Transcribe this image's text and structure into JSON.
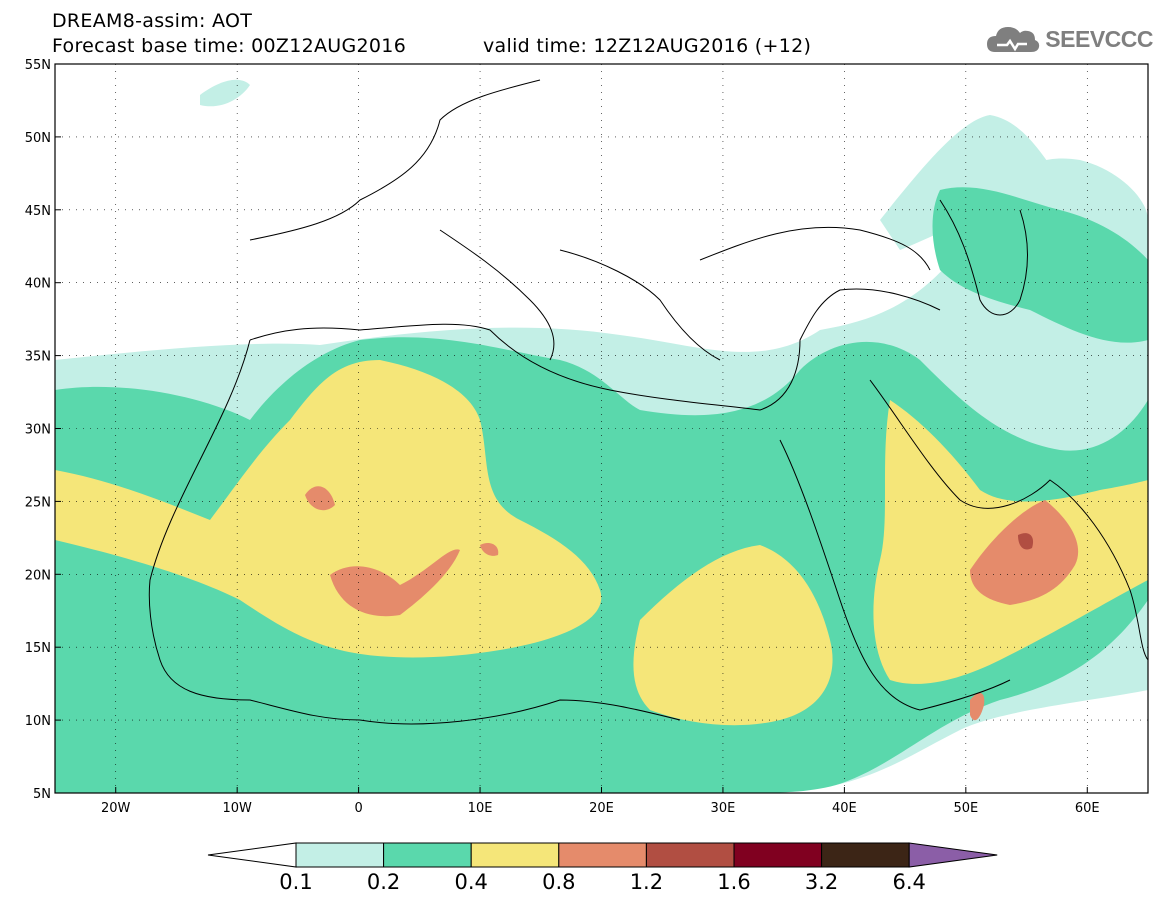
{
  "header": {
    "line1": "DREAM8-assim: AOT",
    "line2": "Forecast base time: 00Z12AUG2016",
    "line2b": "valid time: 12Z12AUG2016 (+12)"
  },
  "logo": {
    "text": "SEEVCCC",
    "icon": "cloud-icon",
    "color": "#7f7f7f"
  },
  "map": {
    "lon_range": [
      -25,
      65
    ],
    "lat_range": [
      5,
      55
    ],
    "x_ticks": [
      "20W",
      "10W",
      "0",
      "10E",
      "20E",
      "30E",
      "40E",
      "50E",
      "60E"
    ],
    "x_tick_values": [
      -20,
      -10,
      0,
      10,
      20,
      30,
      40,
      50,
      60
    ],
    "y_ticks": [
      "55N",
      "50N",
      "45N",
      "40N",
      "35N",
      "30N",
      "25N",
      "20N",
      "15N",
      "10N",
      "5N"
    ],
    "y_tick_values": [
      55,
      50,
      45,
      40,
      35,
      30,
      25,
      20,
      15,
      10,
      5
    ]
  },
  "colorbar": {
    "labels": [
      "0.1",
      "0.2",
      "0.4",
      "0.8",
      "1.2",
      "1.6",
      "3.2",
      "6.4"
    ],
    "colors": [
      "#ffffff",
      "#c3efe6",
      "#5ad8ac",
      "#f5e679",
      "#e58b6b",
      "#b14e42",
      "#800020",
      "#3c2516",
      "#8b5ea7"
    ]
  },
  "chart_data": {
    "type": "heatmap",
    "title": "DREAM8-assim: AOT",
    "levels": [
      0.1,
      0.2,
      0.4,
      0.8,
      1.2,
      1.6,
      3.2,
      6.4
    ],
    "xlim": [
      -25,
      65
    ],
    "ylim": [
      5,
      55
    ],
    "grid": true
  }
}
